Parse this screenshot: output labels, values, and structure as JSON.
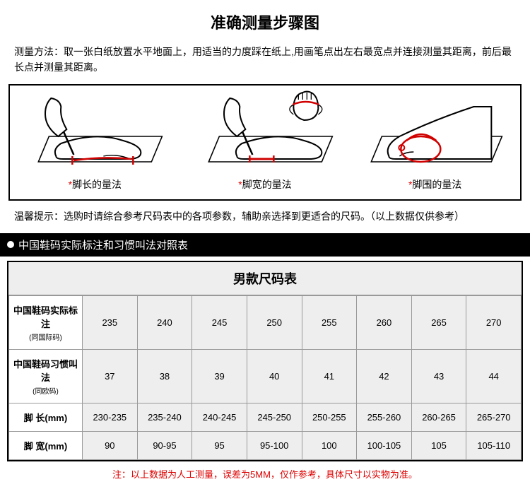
{
  "title": "准确测量步骤图",
  "method_text": "测量方法：取一张白纸放置水平地面上，用适当的力度踩在纸上,用画笔点出左右最宽点并连接测量其距离，前后最长点并测量其距离。",
  "diagrams": [
    {
      "label": "脚长的量法"
    },
    {
      "label": "脚宽的量法"
    },
    {
      "label": "脚围的量法"
    }
  ],
  "tip_text": "温馨提示：选购时请综合参考尺码表中的各项参数，辅助亲选择到更适合的尺码。（以上数据仅供参考）",
  "blackbar_text": "中国鞋码实际标注和习惯叫法对照表",
  "chart_title": "男款尺码表",
  "rows": [
    {
      "header": "中国鞋码实际标注",
      "sub": "(同国际码)",
      "cells": [
        "235",
        "240",
        "245",
        "250",
        "255",
        "260",
        "265",
        "270"
      ]
    },
    {
      "header": "中国鞋码习惯叫法",
      "sub": "(同欧码)",
      "cells": [
        "37",
        "38",
        "39",
        "40",
        "41",
        "42",
        "43",
        "44"
      ]
    },
    {
      "header": "脚 长(mm)",
      "sub": "",
      "cells": [
        "230-235",
        "235-240",
        "240-245",
        "245-250",
        "250-255",
        "255-260",
        "260-265",
        "265-270"
      ]
    },
    {
      "header": "脚 宽(mm)",
      "sub": "",
      "cells": [
        "90",
        "90-95",
        "95",
        "95-100",
        "100",
        "100-105",
        "105",
        "105-110"
      ]
    }
  ],
  "footnote": "注：以上数据为人工测量，误差为5MM，仅作参考，具体尺寸以实物为准。",
  "colors": {
    "accent_red": "#d00000",
    "border": "#000",
    "cell_bg": "#eeeeee",
    "grid": "#999"
  }
}
